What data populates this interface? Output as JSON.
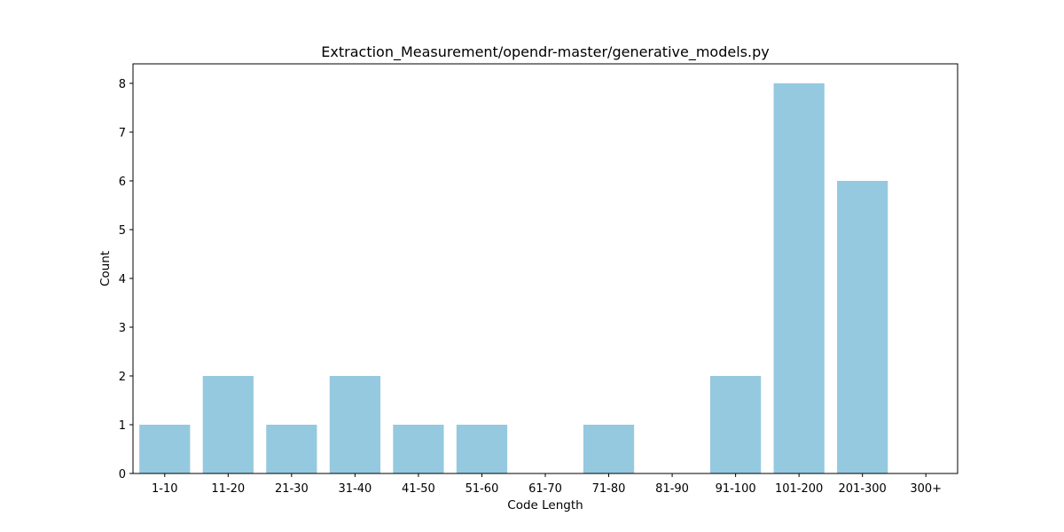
{
  "chart_data": {
    "type": "bar",
    "title": "Extraction_Measurement/opendr-master/generative_models.py",
    "xlabel": "Code Length",
    "ylabel": "Count",
    "categories": [
      "1-10",
      "11-20",
      "21-30",
      "31-40",
      "41-50",
      "51-60",
      "61-70",
      "71-80",
      "81-90",
      "91-100",
      "101-200",
      "201-300",
      "300+"
    ],
    "values": [
      1,
      2,
      1,
      2,
      1,
      1,
      0,
      1,
      0,
      2,
      8,
      6,
      0
    ],
    "yticks": [
      0,
      1,
      2,
      3,
      4,
      5,
      6,
      7,
      8
    ],
    "ylim": [
      0,
      8.4
    ],
    "bar_color": "#95c9df",
    "grid": false,
    "legend": "none"
  }
}
